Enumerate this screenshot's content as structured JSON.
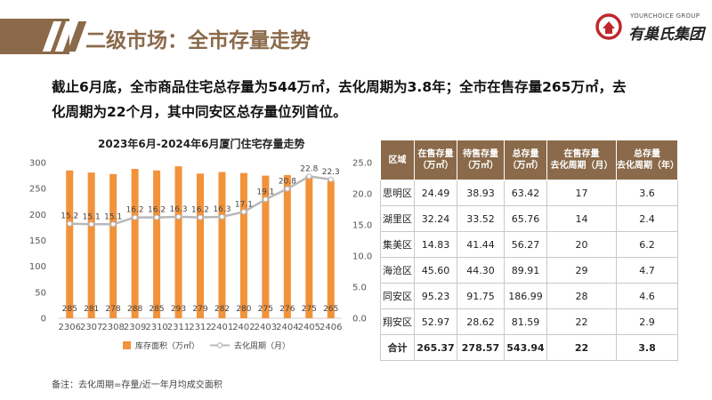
{
  "header": {
    "title": "二级市场：全市存量走势",
    "logo_en": "YOURCHOICE GROUP",
    "logo_cn": "有巢氏集团"
  },
  "summary": {
    "line1": "截止6月底，全市商品住宅总存量为544万㎡，去化周期为3.8年；全市在售存量265万㎡，去",
    "line2": "化周期为22个月，其中同安区总存量位列首位。"
  },
  "chart_data": {
    "type": "bar",
    "title": "2023年6月-2024年6月厦门住宅存量走势",
    "categories": [
      "2306",
      "2307",
      "2308",
      "2309",
      "2310",
      "2311",
      "2312",
      "2401",
      "2402",
      "2403",
      "2404",
      "2405",
      "2406"
    ],
    "series": [
      {
        "name": "库存面积（万㎡）",
        "type": "bar",
        "axis": "left",
        "values": [
          285,
          281,
          278,
          288,
          285,
          293,
          279,
          282,
          280,
          275,
          276,
          275,
          265
        ]
      },
      {
        "name": "去化周期（月）",
        "type": "line",
        "axis": "right",
        "values": [
          15.2,
          15.1,
          15.1,
          16.2,
          16.2,
          16.3,
          16.2,
          16.3,
          17.1,
          19.1,
          20.8,
          22.8,
          22.3
        ]
      }
    ],
    "left_axis": {
      "ticks": [
        "0",
        "50",
        "100",
        "150",
        "200",
        "250",
        "300"
      ],
      "ylim": [
        0,
        300
      ]
    },
    "right_axis": {
      "ticks": [
        "0.0",
        "5.0",
        "10.0",
        "15.0",
        "20.0",
        "25.0"
      ],
      "ylim": [
        0,
        25
      ]
    },
    "colors": {
      "bar": "#f2923b",
      "line": "#b8b8b8",
      "marker_fill": "#ffffff"
    },
    "legend_position": "bottom"
  },
  "table": {
    "headers": [
      [
        "区域"
      ],
      [
        "在售存量",
        "（万㎡）"
      ],
      [
        "待售存量",
        "（万㎡）"
      ],
      [
        "总存量",
        "（万㎡）"
      ],
      [
        "在售存量",
        "去化周期（月）"
      ],
      [
        "总存量",
        "去化周期（年）"
      ]
    ],
    "rows": [
      [
        "思明区",
        "24.49",
        "38.93",
        "63.42",
        "17",
        "3.6"
      ],
      [
        "湖里区",
        "32.24",
        "33.52",
        "65.76",
        "14",
        "2.4"
      ],
      [
        "集美区",
        "14.83",
        "41.44",
        "56.27",
        "20",
        "6.2"
      ],
      [
        "海沧区",
        "45.60",
        "44.30",
        "89.91",
        "29",
        "4.7"
      ],
      [
        "同安区",
        "95.23",
        "91.75",
        "186.99",
        "28",
        "4.6"
      ],
      [
        "翔安区",
        "52.97",
        "28.62",
        "81.59",
        "22",
        "2.9"
      ]
    ],
    "total": [
      "合计",
      "265.37",
      "278.57",
      "543.94",
      "22",
      "3.8"
    ]
  },
  "footnote": "备注：去化周期=存量/近一年月均成交面积",
  "theme": {
    "accent": "#8a6a4a",
    "logo_red": "#c0262d"
  }
}
